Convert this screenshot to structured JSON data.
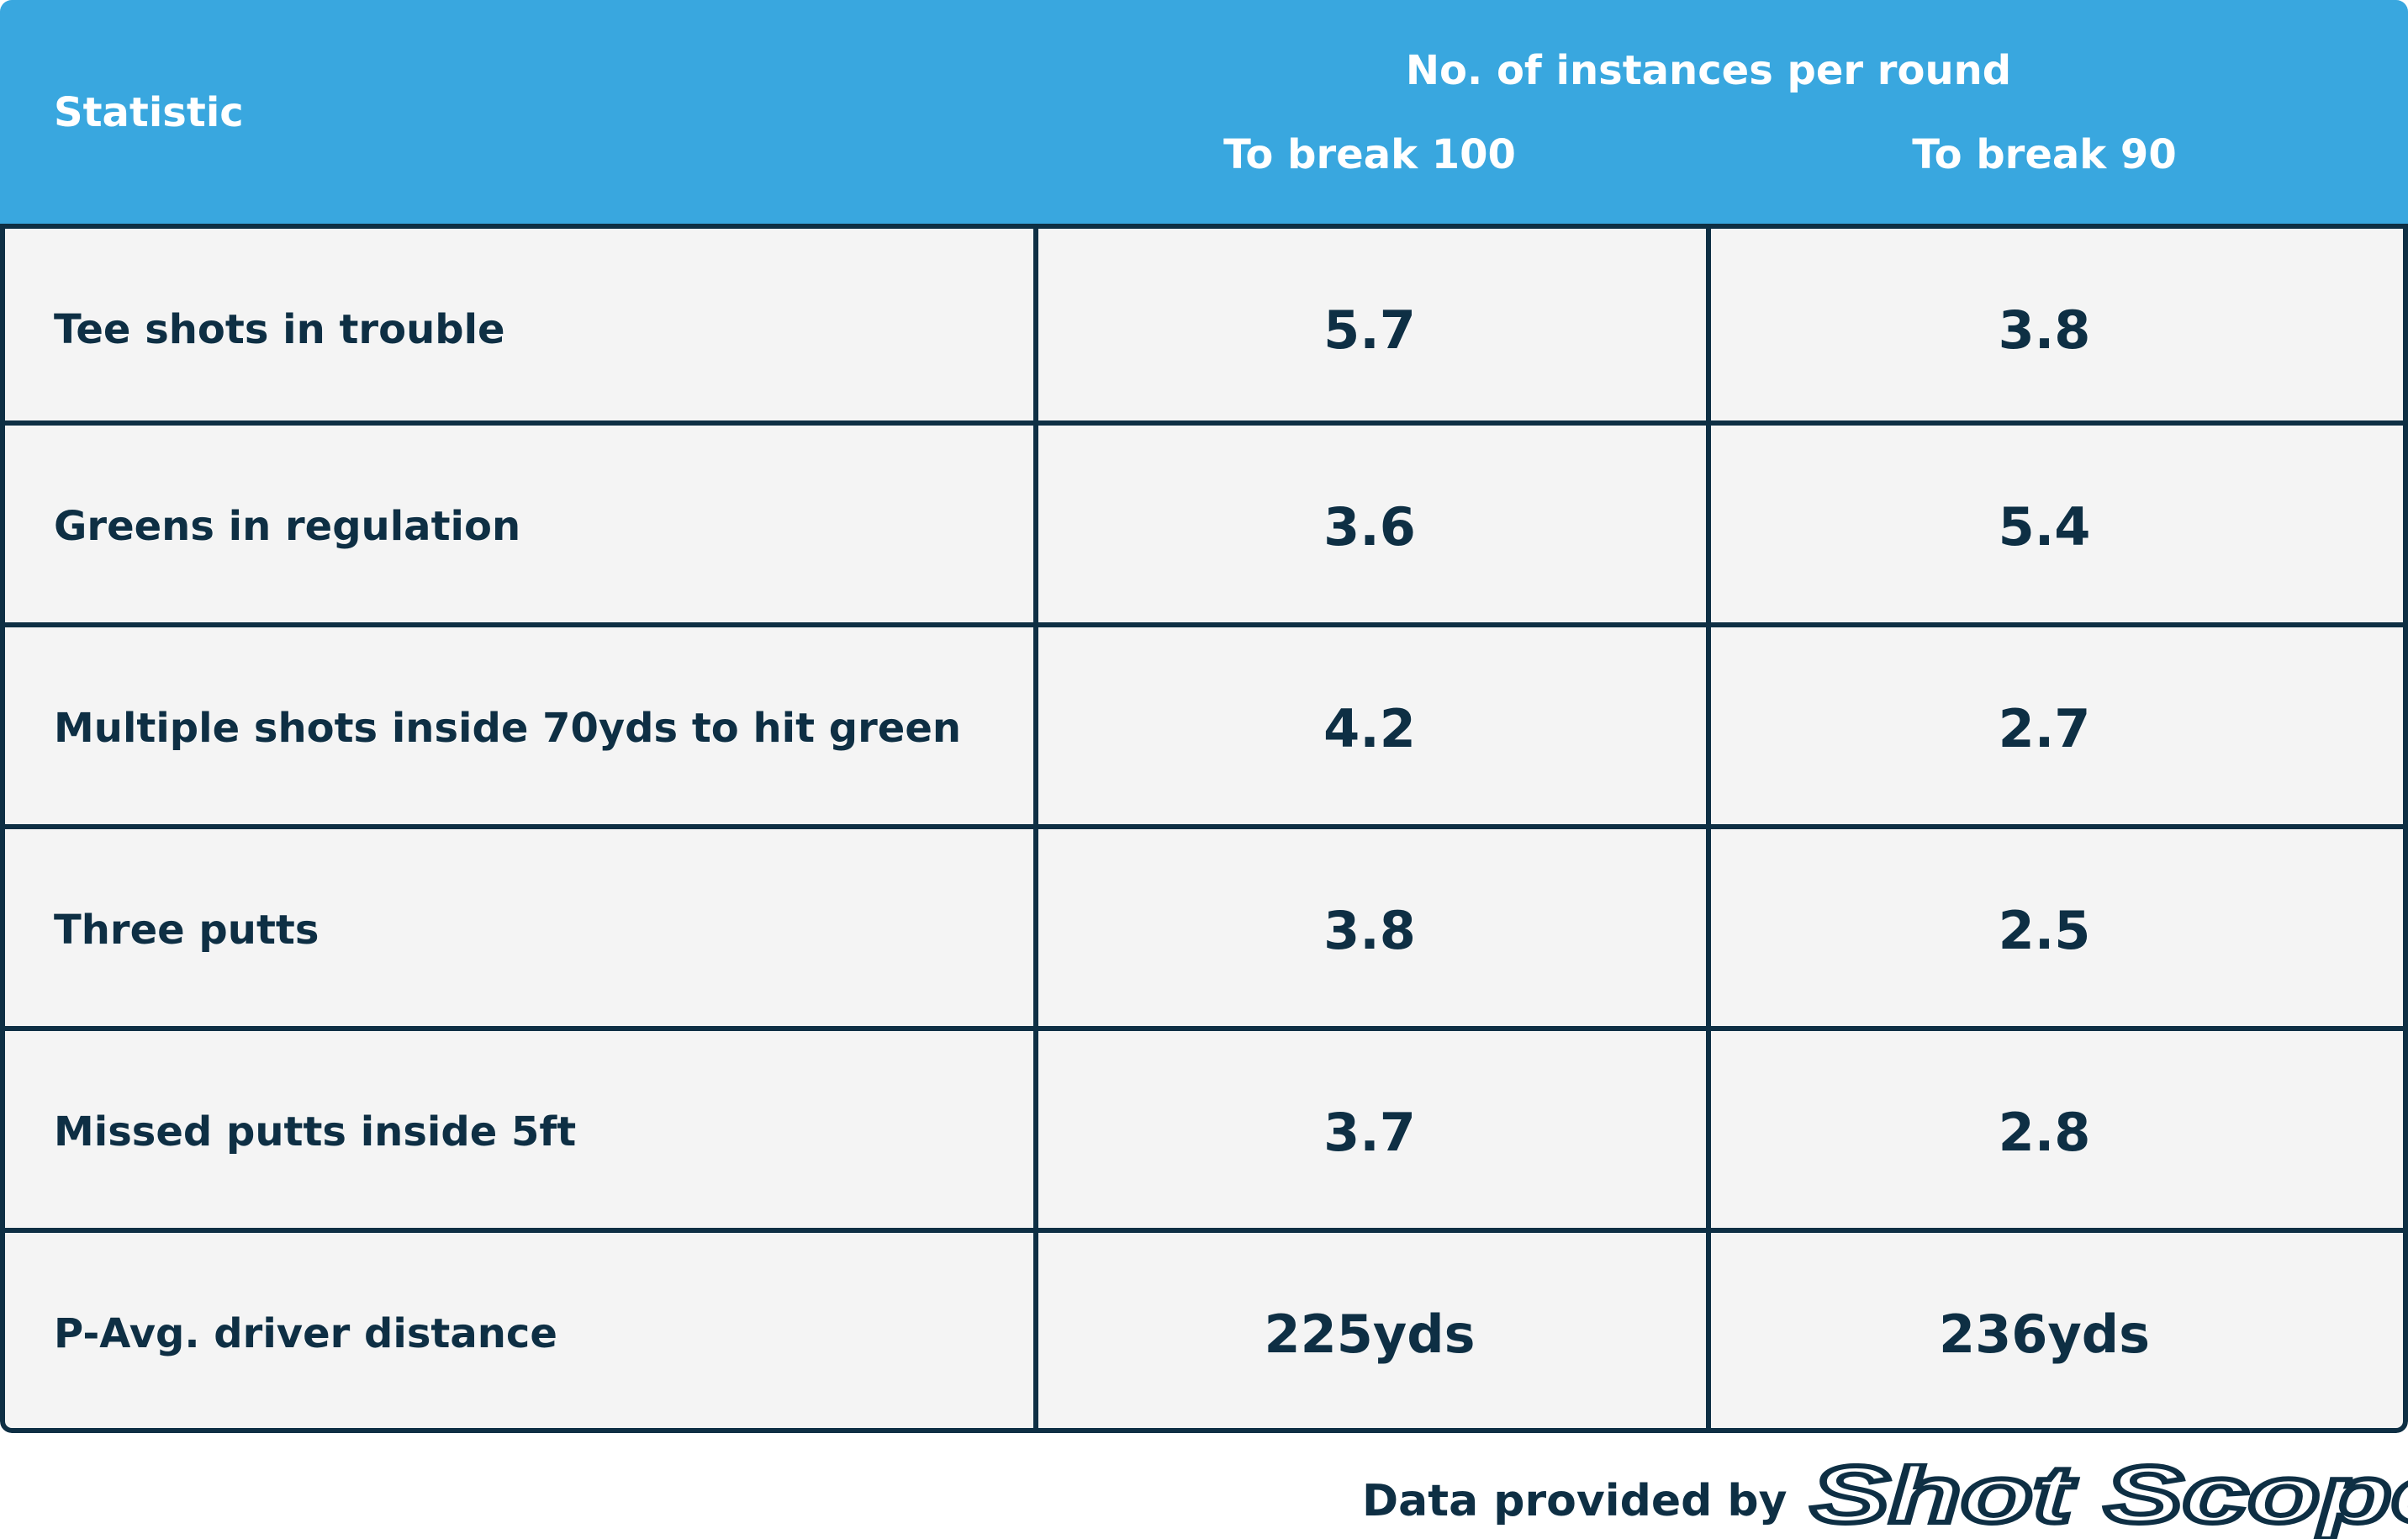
{
  "header": {
    "statistic_label": "Statistic",
    "group_label": "No. of instances per round",
    "col1_label": "To break 100",
    "col2_label": "To break 90"
  },
  "rows": [
    {
      "statistic": "Tee shots in trouble",
      "break100": "5.7",
      "break90": "3.8"
    },
    {
      "statistic": "Greens in regulation",
      "break100": "3.6",
      "break90": "5.4"
    },
    {
      "statistic": "Multiple shots inside 70yds to hit green",
      "break100": "4.2",
      "break90": "2.7"
    },
    {
      "statistic": "Three putts",
      "break100": "3.8",
      "break90": "2.5"
    },
    {
      "statistic": "Missed putts inside 5ft",
      "break100": "3.7",
      "break90": "2.8"
    },
    {
      "statistic": "P-Avg. driver distance",
      "break100": "225yds",
      "break90": "236yds"
    }
  ],
  "footer": {
    "text": "Data provided by",
    "brand": "Shot Scope"
  },
  "colors": {
    "header_bg": "#39a7df",
    "header_text": "#ffffff",
    "cell_bg": "#f4f4f4",
    "border": "#0e2f44",
    "text": "#0e2f44"
  },
  "chart_data": {
    "type": "table",
    "columns": [
      "Statistic",
      "To break 100",
      "To break 90"
    ],
    "column_group": "No. of instances per round",
    "rows": [
      [
        "Tee shots in trouble",
        "5.7",
        "3.8"
      ],
      [
        "Greens in regulation",
        "3.6",
        "5.4"
      ],
      [
        "Multiple shots inside 70yds to hit green",
        "4.2",
        "2.7"
      ],
      [
        "Three putts",
        "3.8",
        "2.5"
      ],
      [
        "Missed putts inside 5ft",
        "3.7",
        "2.8"
      ],
      [
        "P-Avg. driver distance",
        "225yds",
        "236yds"
      ]
    ]
  }
}
